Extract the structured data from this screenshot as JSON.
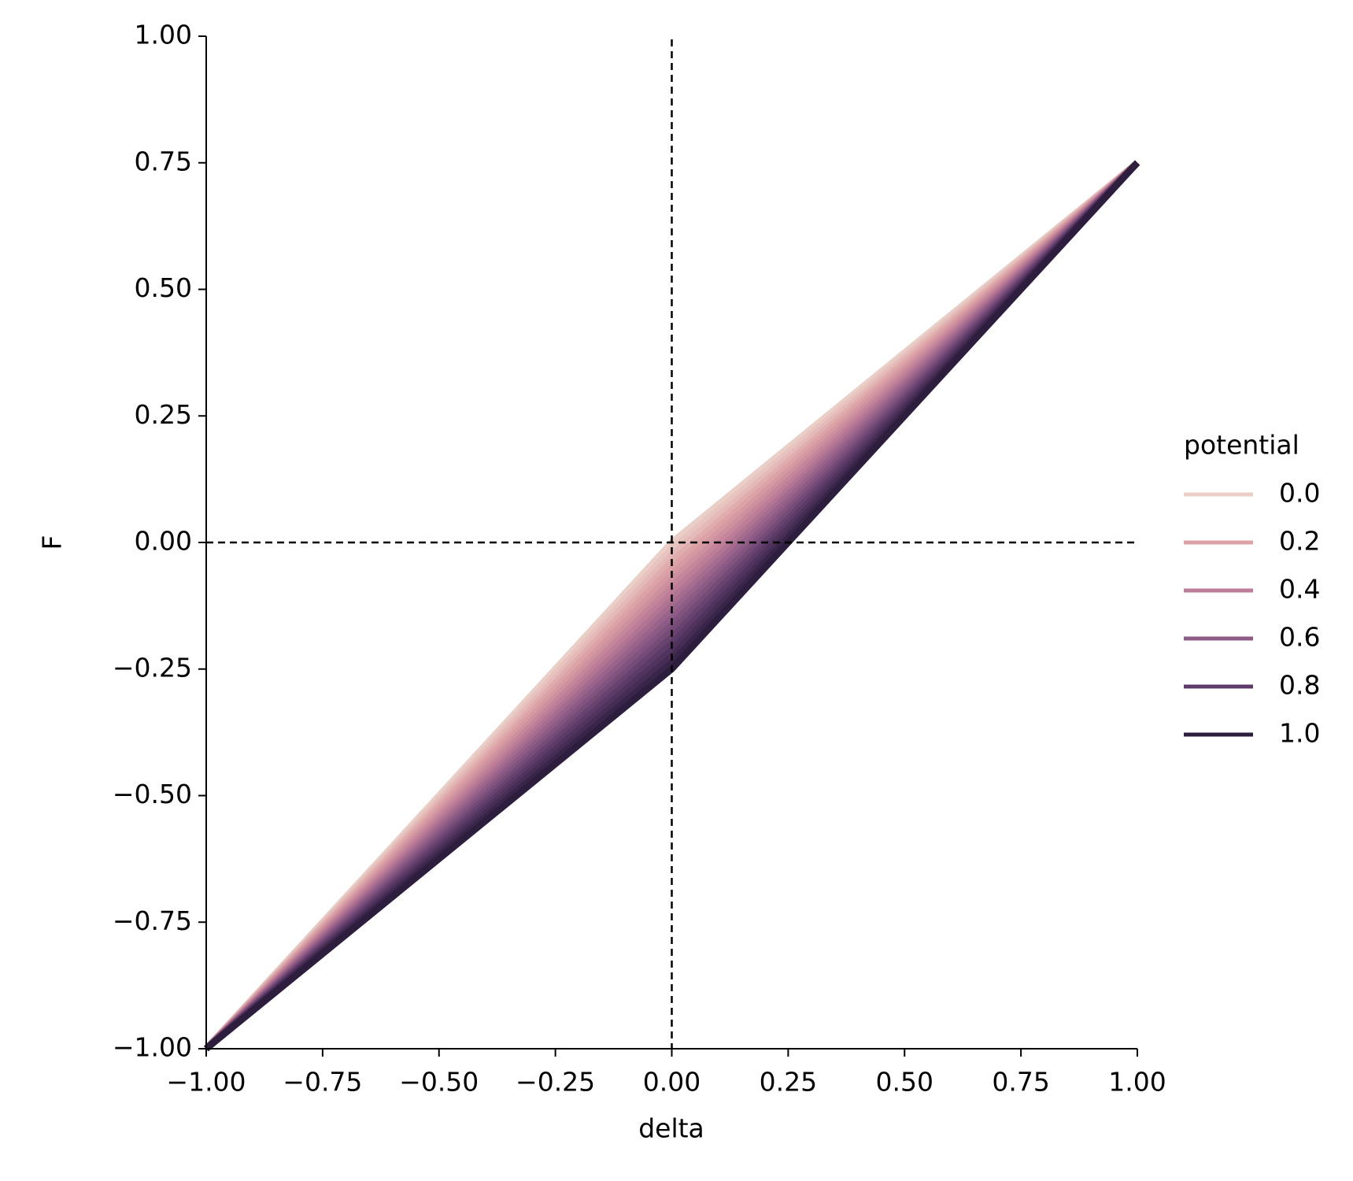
{
  "chart_data": {
    "type": "line",
    "xlabel": "delta",
    "ylabel": "F",
    "x": [
      -1,
      0,
      1
    ],
    "series": [
      {
        "color": "#ebcfc7",
        "values": [
          -1,
          0,
          0.75
        ]
      },
      {
        "color": "#e7c4bf",
        "values": [
          -1,
          -0.0125,
          0.75
        ]
      },
      {
        "color": "#e4b9b7",
        "values": [
          -1,
          -0.025,
          0.75
        ]
      },
      {
        "color": "#e0adae",
        "values": [
          -1,
          -0.0375,
          0.75
        ]
      },
      {
        "color": "#dca2a6",
        "values": [
          -1,
          -0.05,
          0.75
        ]
      },
      {
        "color": "#d499a3",
        "values": [
          -1,
          -0.0625,
          0.75
        ]
      },
      {
        "color": "#cd909f",
        "values": [
          -1,
          -0.075,
          0.75
        ]
      },
      {
        "color": "#c5869c",
        "values": [
          -1,
          -0.0875,
          0.75
        ]
      },
      {
        "color": "#bd7d98",
        "values": [
          -1,
          -0.1,
          0.75
        ]
      },
      {
        "color": "#b17594",
        "values": [
          -1,
          -0.1125,
          0.75
        ]
      },
      {
        "color": "#a56c8f",
        "values": [
          -1,
          -0.125,
          0.75
        ]
      },
      {
        "color": "#99648b",
        "values": [
          -1,
          -0.1375,
          0.75
        ]
      },
      {
        "color": "#8d5b86",
        "values": [
          -1,
          -0.15,
          0.75
        ]
      },
      {
        "color": "#81537f",
        "values": [
          -1,
          -0.1625,
          0.75
        ]
      },
      {
        "color": "#754b77",
        "values": [
          -1,
          -0.175,
          0.75
        ]
      },
      {
        "color": "#684370",
        "values": [
          -1,
          -0.1875,
          0.75
        ]
      },
      {
        "color": "#5c3b68",
        "values": [
          -1,
          -0.2,
          0.75
        ]
      },
      {
        "color": "#50345e",
        "values": [
          -1,
          -0.2125,
          0.75
        ]
      },
      {
        "color": "#452d53",
        "values": [
          -1,
          -0.225,
          0.75
        ]
      },
      {
        "color": "#392549",
        "values": [
          -1,
          -0.2375,
          0.75
        ]
      },
      {
        "color": "#2d1e3e",
        "values": [
          -1,
          -0.25,
          0.75
        ]
      }
    ],
    "xlim": [
      -1,
      1
    ],
    "ylim": [
      -1,
      1
    ],
    "xticks": [
      {
        "value": -1,
        "label": "−1.00"
      },
      {
        "value": -0.75,
        "label": "−0.75"
      },
      {
        "value": -0.5,
        "label": "−0.50"
      },
      {
        "value": -0.25,
        "label": "−0.25"
      },
      {
        "value": 0,
        "label": "0.00"
      },
      0.25,
      {
        "value": 0.5,
        "label": "0.50"
      },
      0.75,
      {
        "value": 1,
        "label": "1.00"
      }
    ],
    "yticks": [
      {
        "value": -1,
        "label": "−1.00"
      },
      {
        "value": -0.75,
        "label": "−0.75"
      },
      {
        "value": -0.5,
        "label": "−0.50"
      },
      {
        "value": -0.25,
        "label": "−0.25"
      },
      {
        "value": 0,
        "label": "0.00"
      },
      0.25,
      {
        "value": 0.5,
        "label": "0.50"
      },
      0.75,
      {
        "value": 1,
        "label": "1.00"
      }
    ],
    "vline": 0,
    "hline": 0,
    "legend": {
      "position": "right",
      "title": "potential",
      "entries": [
        {
          "label": "0.0",
          "color": "#ebcfc7"
        },
        {
          "label": "0.2",
          "color": "#dca2a6"
        },
        {
          "label": "0.4",
          "color": "#bd7d98"
        },
        {
          "label": "0.6",
          "color": "#8d5b86"
        },
        {
          "label": "0.8",
          "color": "#5c3b68"
        },
        {
          "label": "1.0",
          "color": "#2d1e3e"
        }
      ]
    }
  }
}
